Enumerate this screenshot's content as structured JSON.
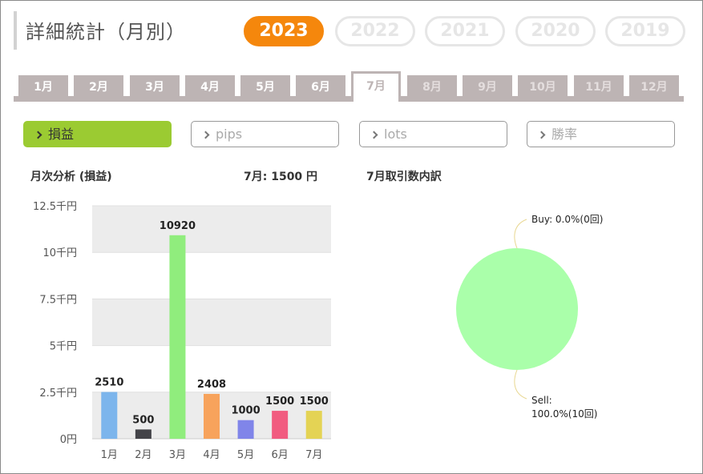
{
  "title": "詳細統計（月別）",
  "years": [
    {
      "label": "2023",
      "active": true
    },
    {
      "label": "2022",
      "active": false
    },
    {
      "label": "2021",
      "active": false
    },
    {
      "label": "2020",
      "active": false
    },
    {
      "label": "2019",
      "active": false
    }
  ],
  "months": [
    {
      "label": "1月",
      "state": "enabled"
    },
    {
      "label": "2月",
      "state": "enabled"
    },
    {
      "label": "3月",
      "state": "enabled"
    },
    {
      "label": "4月",
      "state": "enabled"
    },
    {
      "label": "5月",
      "state": "enabled"
    },
    {
      "label": "6月",
      "state": "enabled"
    },
    {
      "label": "7月",
      "state": "active"
    },
    {
      "label": "8月",
      "state": "disabled"
    },
    {
      "label": "9月",
      "state": "disabled"
    },
    {
      "label": "10月",
      "state": "disabled"
    },
    {
      "label": "11月",
      "state": "disabled"
    },
    {
      "label": "12月",
      "state": "disabled"
    }
  ],
  "metrics": [
    {
      "label": "損益",
      "active": true
    },
    {
      "label": "pips",
      "active": false
    },
    {
      "label": "lots",
      "active": false
    },
    {
      "label": "勝率",
      "active": false
    }
  ],
  "bar_section": {
    "title": "月次分析 (損益)",
    "summary": "7月:  1500 円"
  },
  "pie_section": {
    "title": "7月取引数内訳"
  },
  "colors": {
    "accent_year": "#f5870c",
    "metric_active": "#9bcb32",
    "tab": "#bdb4b4"
  },
  "chart_data": [
    {
      "type": "bar",
      "categories": [
        "1月",
        "2月",
        "3月",
        "4月",
        "5月",
        "6月",
        "7月"
      ],
      "values": [
        2510,
        500,
        10920,
        2408,
        1000,
        1500,
        1500
      ],
      "data_labels": [
        "2510",
        "500",
        "10920",
        "2408",
        "1000",
        "1500",
        "1500"
      ],
      "colors": [
        "#7cb5ec",
        "#434348",
        "#90ed7d",
        "#f7a35c",
        "#8085e9",
        "#f15c80",
        "#e4d354"
      ],
      "ylim": [
        0,
        12500
      ],
      "yticks": [
        0,
        2500,
        5000,
        7500,
        10000,
        12500
      ],
      "ytick_labels": [
        "0円",
        "2.5千円",
        "5千円",
        "7.5千円",
        "10千円",
        "12.5千円"
      ],
      "grid": true,
      "band_fill": "#ececec"
    },
    {
      "type": "pie",
      "slices": [
        {
          "name": "Buy",
          "value": 0.0,
          "count": 0,
          "label_lines": [
            "Buy: 0.0%(0回)"
          ]
        },
        {
          "name": "Sell",
          "value": 100.0,
          "count": 10,
          "label_lines": [
            "Sell:",
            "100.0%(10回)"
          ],
          "color": "#aaffaa"
        }
      ],
      "connector_color": "#e8d790"
    }
  ]
}
